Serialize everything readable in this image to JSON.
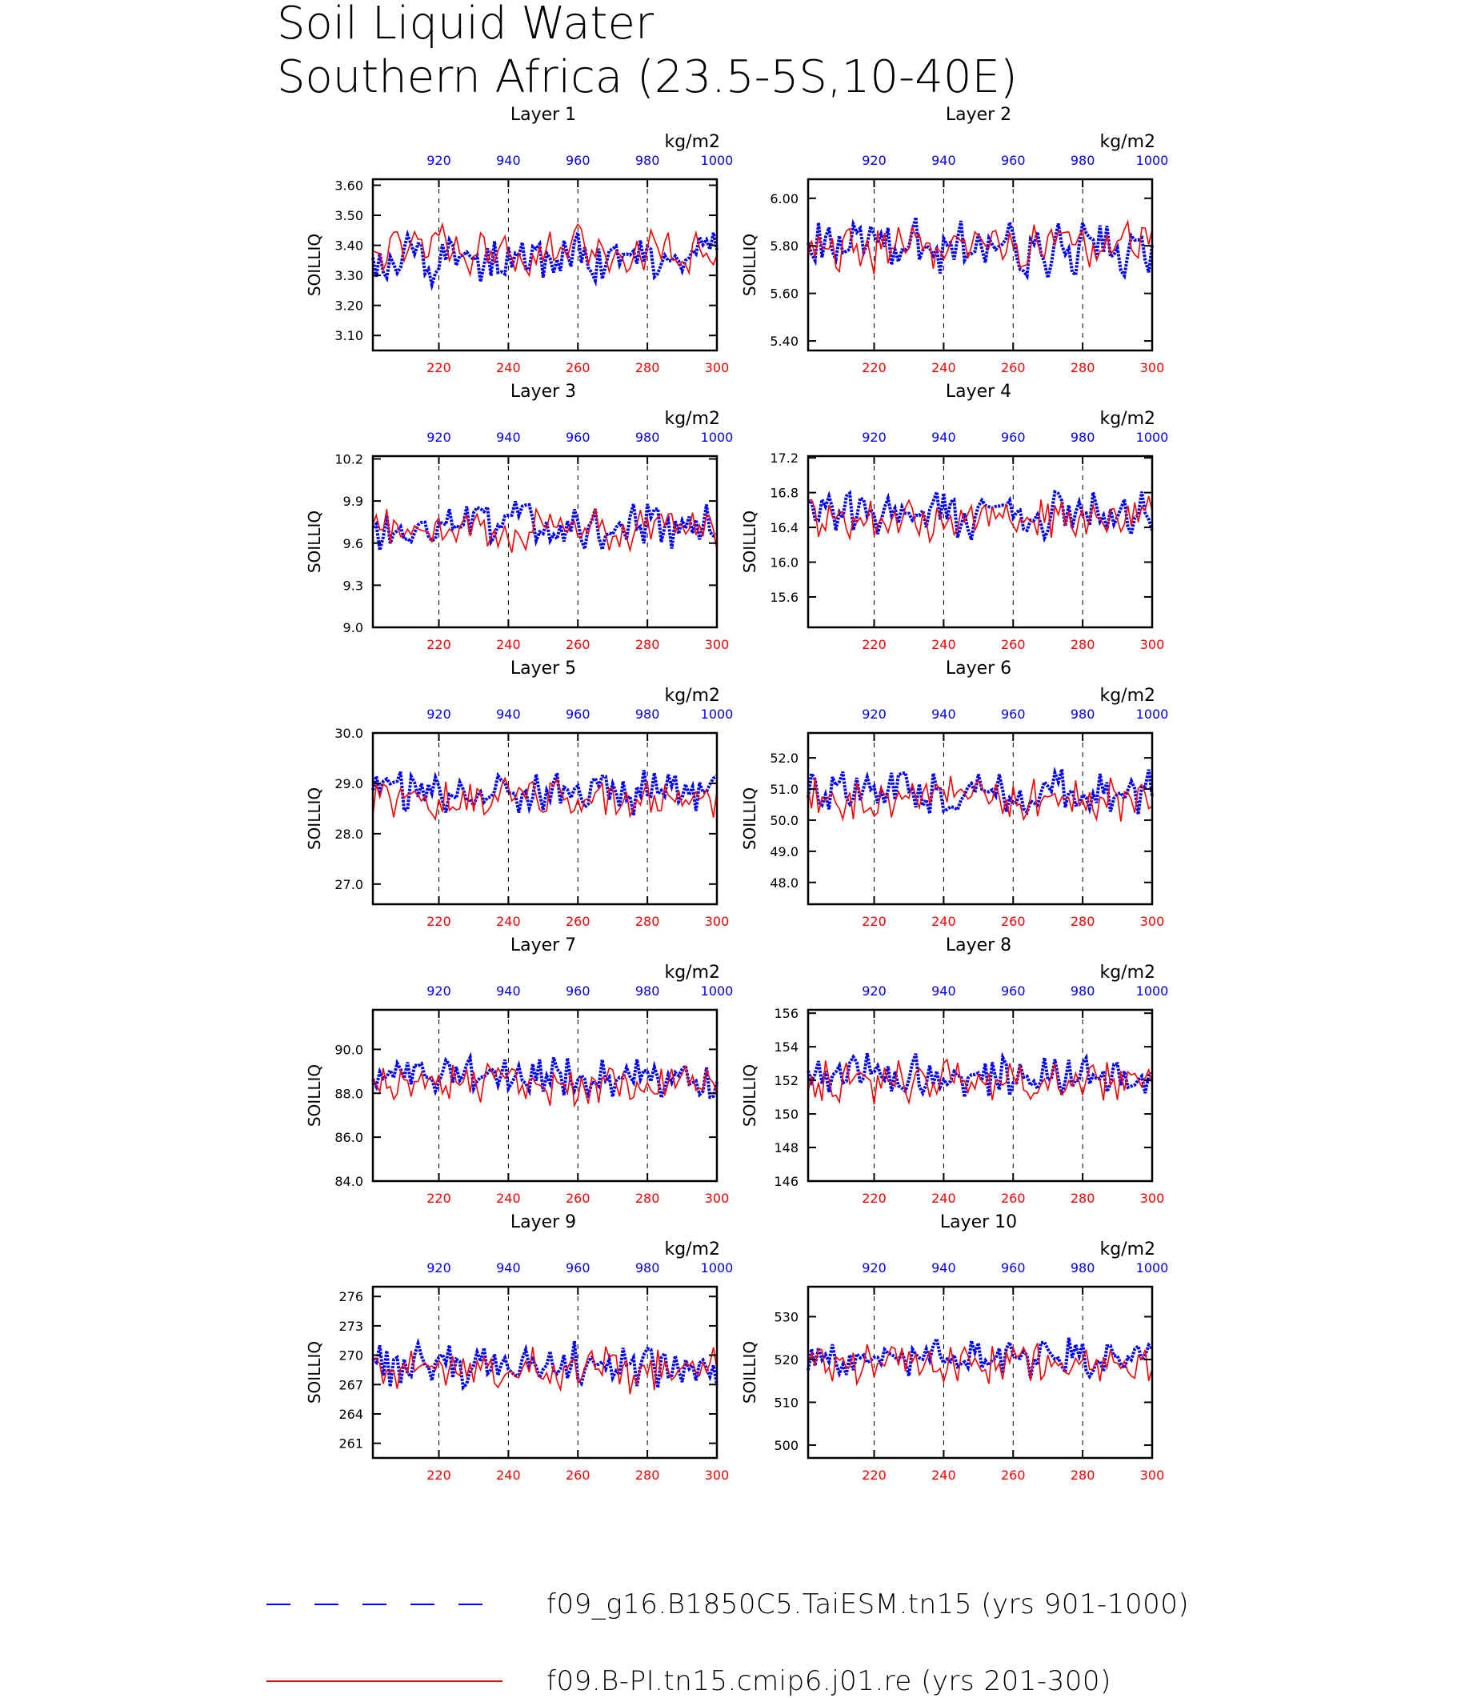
{
  "title": {
    "line1": "Soil Liquid Water",
    "line2": "Southern Africa (23.5-5S,10-40E)"
  },
  "colors": {
    "red": "#ff0000",
    "blue": "#0000ff",
    "black": "#000000"
  },
  "legend": [
    {
      "label": "f09_g16.B1850C5.TaiESM.tn15 (yrs 901-1000)",
      "color": "#0000ff",
      "style": "dashed"
    },
    {
      "label": "f09.B-PI.tn15.cmip6.j01.re (yrs 201-300)",
      "color": "#ff0000",
      "style": "solid"
    }
  ],
  "chart_data": [
    {
      "type": "line",
      "title": "Layer 1",
      "ylabel": "SOILLIQ",
      "top_axis_label": "kg/m2",
      "x_bottom": {
        "range": [
          201,
          300
        ],
        "ticks": [
          220,
          240,
          260,
          280,
          300
        ]
      },
      "x_top": {
        "range": [
          901,
          1000
        ],
        "ticks": [
          920,
          940,
          960,
          980,
          1000
        ]
      },
      "ylim": [
        3.05,
        3.62
      ],
      "yticks": [
        "3.10",
        "3.20",
        "3.30",
        "3.40",
        "3.50",
        "3.60"
      ],
      "grid": "dashed vertical at 220,240,260,280",
      "series": [
        {
          "color": "#0000ff",
          "style": "dashed",
          "axis": "top",
          "mean": 3.36,
          "amp": 0.09,
          "seed": 11
        },
        {
          "color": "#ff0000",
          "style": "solid",
          "axis": "bottom",
          "mean": 3.38,
          "amp": 0.08,
          "seed": 12
        }
      ]
    },
    {
      "type": "line",
      "title": "Layer 2",
      "ylabel": "SOILLIQ",
      "top_axis_label": "kg/m2",
      "x_bottom": {
        "range": [
          201,
          300
        ],
        "ticks": [
          220,
          240,
          260,
          280,
          300
        ]
      },
      "x_top": {
        "range": [
          901,
          1000
        ],
        "ticks": [
          920,
          940,
          960,
          980,
          1000
        ]
      },
      "ylim": [
        5.36,
        6.08
      ],
      "yticks": [
        "5.40",
        "5.60",
        "5.80",
        "6.00"
      ],
      "grid": "dashed vertical at 220,240,260,280",
      "series": [
        {
          "color": "#0000ff",
          "style": "dashed",
          "axis": "top",
          "mean": 5.8,
          "amp": 0.12,
          "seed": 21
        },
        {
          "color": "#ff0000",
          "style": "solid",
          "axis": "bottom",
          "mean": 5.8,
          "amp": 0.11,
          "seed": 22
        }
      ]
    },
    {
      "type": "line",
      "title": "Layer 3",
      "ylabel": "SOILLIQ",
      "top_axis_label": "kg/m2",
      "x_bottom": {
        "range": [
          201,
          300
        ],
        "ticks": [
          220,
          240,
          260,
          280,
          300
        ]
      },
      "x_top": {
        "range": [
          901,
          1000
        ],
        "ticks": [
          920,
          940,
          960,
          980,
          1000
        ]
      },
      "ylim": [
        9.0,
        10.22
      ],
      "yticks": [
        "9.0",
        "9.3",
        "9.6",
        "9.9",
        "10.2"
      ],
      "grid": "dashed vertical at 220,240,260,280",
      "series": [
        {
          "color": "#0000ff",
          "style": "dashed",
          "axis": "top",
          "mean": 9.72,
          "amp": 0.18,
          "seed": 31
        },
        {
          "color": "#ff0000",
          "style": "solid",
          "axis": "bottom",
          "mean": 9.7,
          "amp": 0.16,
          "seed": 32
        }
      ]
    },
    {
      "type": "line",
      "title": "Layer 4",
      "ylabel": "SOILLIQ",
      "top_axis_label": "kg/m2",
      "x_bottom": {
        "range": [
          201,
          300
        ],
        "ticks": [
          220,
          240,
          260,
          280,
          300
        ]
      },
      "x_top": {
        "range": [
          901,
          1000
        ],
        "ticks": [
          920,
          940,
          960,
          980,
          1000
        ]
      },
      "ylim": [
        15.25,
        17.22
      ],
      "yticks": [
        "15.6",
        "16.0",
        "16.4",
        "16.8",
        "17.2"
      ],
      "grid": "dashed vertical at 220,240,260,280",
      "series": [
        {
          "color": "#0000ff",
          "style": "dashed",
          "axis": "top",
          "mean": 16.55,
          "amp": 0.3,
          "seed": 41
        },
        {
          "color": "#ff0000",
          "style": "solid",
          "axis": "bottom",
          "mean": 16.5,
          "amp": 0.28,
          "seed": 42
        }
      ]
    },
    {
      "type": "line",
      "title": "Layer 5",
      "ylabel": "SOILLIQ",
      "top_axis_label": "kg/m2",
      "x_bottom": {
        "range": [
          201,
          300
        ],
        "ticks": [
          220,
          240,
          260,
          280,
          300
        ]
      },
      "x_top": {
        "range": [
          901,
          1000
        ],
        "ticks": [
          920,
          940,
          960,
          980,
          1000
        ]
      },
      "ylim": [
        26.6,
        30.0
      ],
      "yticks": [
        "27.0",
        "28.0",
        "29.0",
        "30.0"
      ],
      "grid": "dashed vertical at 220,240,260,280",
      "series": [
        {
          "color": "#0000ff",
          "style": "dashed",
          "axis": "top",
          "mean": 28.8,
          "amp": 0.5,
          "seed": 51
        },
        {
          "color": "#ff0000",
          "style": "solid",
          "axis": "bottom",
          "mean": 28.7,
          "amp": 0.45,
          "seed": 52
        }
      ]
    },
    {
      "type": "line",
      "title": "Layer 6",
      "ylabel": "SOILLIQ",
      "top_axis_label": "kg/m2",
      "x_bottom": {
        "range": [
          201,
          300
        ],
        "ticks": [
          220,
          240,
          260,
          280,
          300
        ]
      },
      "x_top": {
        "range": [
          901,
          1000
        ],
        "ticks": [
          920,
          940,
          960,
          980,
          1000
        ]
      },
      "ylim": [
        47.3,
        52.8
      ],
      "yticks": [
        "48.0",
        "49.0",
        "50.0",
        "51.0",
        "52.0"
      ],
      "grid": "dashed vertical at 220,240,260,280",
      "series": [
        {
          "color": "#0000ff",
          "style": "dashed",
          "axis": "top",
          "mean": 50.9,
          "amp": 0.8,
          "seed": 61
        },
        {
          "color": "#ff0000",
          "style": "solid",
          "axis": "bottom",
          "mean": 50.7,
          "amp": 0.75,
          "seed": 62
        }
      ]
    },
    {
      "type": "line",
      "title": "Layer 7",
      "ylabel": "SOILLIQ",
      "top_axis_label": "kg/m2",
      "x_bottom": {
        "range": [
          201,
          300
        ],
        "ticks": [
          220,
          240,
          260,
          280,
          300
        ]
      },
      "x_top": {
        "range": [
          901,
          1000
        ],
        "ticks": [
          920,
          940,
          960,
          980,
          1000
        ]
      },
      "ylim": [
        84.0,
        91.8
      ],
      "yticks": [
        "84.0",
        "86.0",
        "88.0",
        "90.0"
      ],
      "grid": "dashed vertical at 220,240,260,280",
      "series": [
        {
          "color": "#0000ff",
          "style": "dashed",
          "axis": "top",
          "mean": 88.7,
          "amp": 1.0,
          "seed": 71
        },
        {
          "color": "#ff0000",
          "style": "solid",
          "axis": "bottom",
          "mean": 88.4,
          "amp": 1.0,
          "seed": 72
        }
      ]
    },
    {
      "type": "line",
      "title": "Layer 8",
      "ylabel": "SOILLIQ",
      "top_axis_label": "kg/m2",
      "x_bottom": {
        "range": [
          201,
          300
        ],
        "ticks": [
          220,
          240,
          260,
          280,
          300
        ]
      },
      "x_top": {
        "range": [
          901,
          1000
        ],
        "ticks": [
          920,
          940,
          960,
          980,
          1000
        ]
      },
      "ylim": [
        146.0,
        156.2
      ],
      "yticks": [
        "146",
        "148",
        "150",
        "152",
        "154",
        "156"
      ],
      "grid": "dashed vertical at 220,240,260,280",
      "series": [
        {
          "color": "#0000ff",
          "style": "dashed",
          "axis": "top",
          "mean": 152.3,
          "amp": 1.4,
          "seed": 81
        },
        {
          "color": "#ff0000",
          "style": "solid",
          "axis": "bottom",
          "mean": 151.9,
          "amp": 1.4,
          "seed": 82
        }
      ]
    },
    {
      "type": "line",
      "title": "Layer 9",
      "ylabel": "SOILLIQ",
      "top_axis_label": "kg/m2",
      "x_bottom": {
        "range": [
          201,
          300
        ],
        "ticks": [
          220,
          240,
          260,
          280,
          300
        ]
      },
      "x_top": {
        "range": [
          901,
          1000
        ],
        "ticks": [
          920,
          940,
          960,
          980,
          1000
        ]
      },
      "ylim": [
        259.5,
        277.0
      ],
      "yticks": [
        "261",
        "264",
        "267",
        "270",
        "273",
        "276"
      ],
      "grid": "dashed vertical at 220,240,260,280",
      "series": [
        {
          "color": "#0000ff",
          "style": "dashed",
          "axis": "top",
          "mean": 269.0,
          "amp": 2.5,
          "seed": 91
        },
        {
          "color": "#ff0000",
          "style": "solid",
          "axis": "bottom",
          "mean": 268.5,
          "amp": 2.5,
          "seed": 92
        }
      ]
    },
    {
      "type": "line",
      "title": "Layer 10",
      "ylabel": "SOILLIQ",
      "top_axis_label": "kg/m2",
      "x_bottom": {
        "range": [
          201,
          300
        ],
        "ticks": [
          220,
          240,
          260,
          280,
          300
        ]
      },
      "x_top": {
        "range": [
          901,
          1000
        ],
        "ticks": [
          920,
          940,
          960,
          980,
          1000
        ]
      },
      "ylim": [
        497.0,
        537.0
      ],
      "yticks": [
        "500",
        "510",
        "520",
        "530"
      ],
      "grid": "dashed vertical at 220,240,260,280",
      "series": [
        {
          "color": "#0000ff",
          "style": "dashed",
          "axis": "top",
          "mean": 520.5,
          "amp": 5.0,
          "seed": 101
        },
        {
          "color": "#ff0000",
          "style": "solid",
          "axis": "bottom",
          "mean": 519.0,
          "amp": 5.0,
          "seed": 102
        }
      ]
    }
  ]
}
